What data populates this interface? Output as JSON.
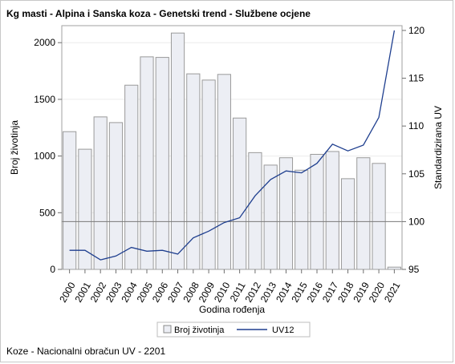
{
  "chart_data": {
    "type": "bar",
    "title": "Kg masti - Alpina i Sanska koza - Genetski trend - Službene ocjene",
    "xlabel": "Godina rođenja",
    "ylabel": "Broj životinja",
    "y2label": "Standardizirana UV",
    "categories": [
      "2000",
      "2001",
      "2002",
      "2003",
      "2004",
      "2005",
      "2006",
      "2007",
      "2008",
      "2009",
      "2010",
      "2011",
      "2012",
      "2013",
      "2014",
      "2015",
      "2016",
      "2017",
      "2018",
      "2019",
      "2020",
      "2021"
    ],
    "ylim": [
      0,
      2150
    ],
    "y2lim": [
      95,
      120.5
    ],
    "yticks": [
      0,
      500,
      1000,
      1500,
      2000
    ],
    "y2ticks": [
      95,
      100,
      105,
      110,
      115,
      120
    ],
    "reference_line_y2": 100,
    "grid": true,
    "legend_position": "bottom",
    "series": [
      {
        "name": "Broj životinja",
        "type": "bar",
        "axis": "left",
        "color": "#eceef4",
        "values": [
          1215,
          1060,
          1345,
          1295,
          1625,
          1875,
          1870,
          2085,
          1725,
          1670,
          1720,
          1335,
          1030,
          920,
          985,
          875,
          1015,
          1040,
          800,
          985,
          935,
          20
        ]
      },
      {
        "name": "UV12",
        "type": "line",
        "axis": "right",
        "color": "#1f3f8f",
        "values": [
          97.0,
          97.0,
          96.0,
          96.4,
          97.3,
          96.9,
          97.0,
          96.6,
          98.3,
          99.0,
          99.9,
          100.4,
          102.7,
          104.4,
          105.3,
          105.1,
          106.1,
          108.1,
          107.4,
          108.0,
          110.9,
          120.0
        ]
      }
    ]
  },
  "footnote": "Koze - Nacionalni obračun UV - 2201"
}
